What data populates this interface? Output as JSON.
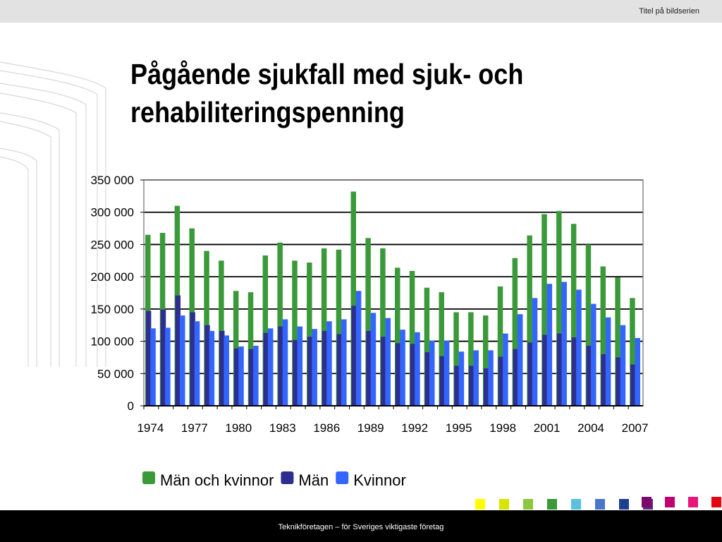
{
  "header": {
    "series_title": "Titel på bildserien"
  },
  "slide": {
    "title": "Pågående sjukfall med sjuk- och rehabiliteringspenning"
  },
  "footer": {
    "text": "Teknikföretagen – för Sveriges viktigaste företag"
  },
  "colors": {
    "total": "#3a9a3a",
    "men": "#2e2e8f",
    "women": "#3366ff",
    "strip_top": [
      "#7b0a6b",
      "#c0006e",
      "#e8157a",
      "#e30613"
    ],
    "strip_bottom": [
      "#ffff00",
      "#d6e600",
      "#8dc63f",
      "#3a9a3a",
      "#5bc0de",
      "#4a76c8",
      "#1e3f8f",
      "#5a2d82"
    ]
  },
  "chart_data": {
    "type": "bar",
    "x": [
      1974,
      1975,
      1976,
      1977,
      1978,
      1979,
      1980,
      1981,
      1982,
      1983,
      1984,
      1985,
      1986,
      1987,
      1988,
      1989,
      1990,
      1991,
      1992,
      1993,
      1994,
      1995,
      1996,
      1997,
      1998,
      1999,
      2000,
      2001,
      2002,
      2003,
      2004,
      2005,
      2006,
      2007
    ],
    "x_tick_labels": [
      "1974",
      "1977",
      "1980",
      "1983",
      "1986",
      "1989",
      "1992",
      "1995",
      "1998",
      "2001",
      "2004",
      "2007"
    ],
    "y_tick_labels": [
      "0",
      "50 000",
      "100 000",
      "150 000",
      "200 000",
      "250 000",
      "300 000",
      "350 000"
    ],
    "ylim": [
      0,
      350000
    ],
    "grid": true,
    "legend": "bottom",
    "series": [
      {
        "name": "Män och kvinnor",
        "values": [
          265000,
          268000,
          310000,
          275000,
          240000,
          225000,
          178000,
          176000,
          233000,
          253000,
          225000,
          222000,
          244000,
          242000,
          332000,
          260000,
          244000,
          214000,
          209000,
          183000,
          176000,
          145000,
          145000,
          140000,
          185000,
          229000,
          264000,
          297000,
          302000,
          282000,
          250000,
          216000,
          199000,
          167000
        ]
      },
      {
        "name": "Män",
        "values": [
          147000,
          149000,
          171000,
          145000,
          125000,
          116000,
          89000,
          88000,
          113000,
          123000,
          102000,
          107000,
          116000,
          111000,
          155000,
          116000,
          107000,
          97000,
          96000,
          83000,
          77000,
          62000,
          62000,
          58000,
          76000,
          88000,
          98000,
          110000,
          112000,
          106000,
          93000,
          80000,
          75000,
          64000
        ]
      },
      {
        "name": "Kvinnor",
        "values": [
          120000,
          121000,
          140000,
          131000,
          116000,
          109000,
          92000,
          93000,
          120000,
          134000,
          123000,
          119000,
          131000,
          134000,
          178000,
          144000,
          136000,
          118000,
          114000,
          101000,
          101000,
          84000,
          86000,
          86000,
          112000,
          142000,
          167000,
          189000,
          192000,
          180000,
          158000,
          137000,
          125000,
          105000
        ]
      }
    ]
  }
}
